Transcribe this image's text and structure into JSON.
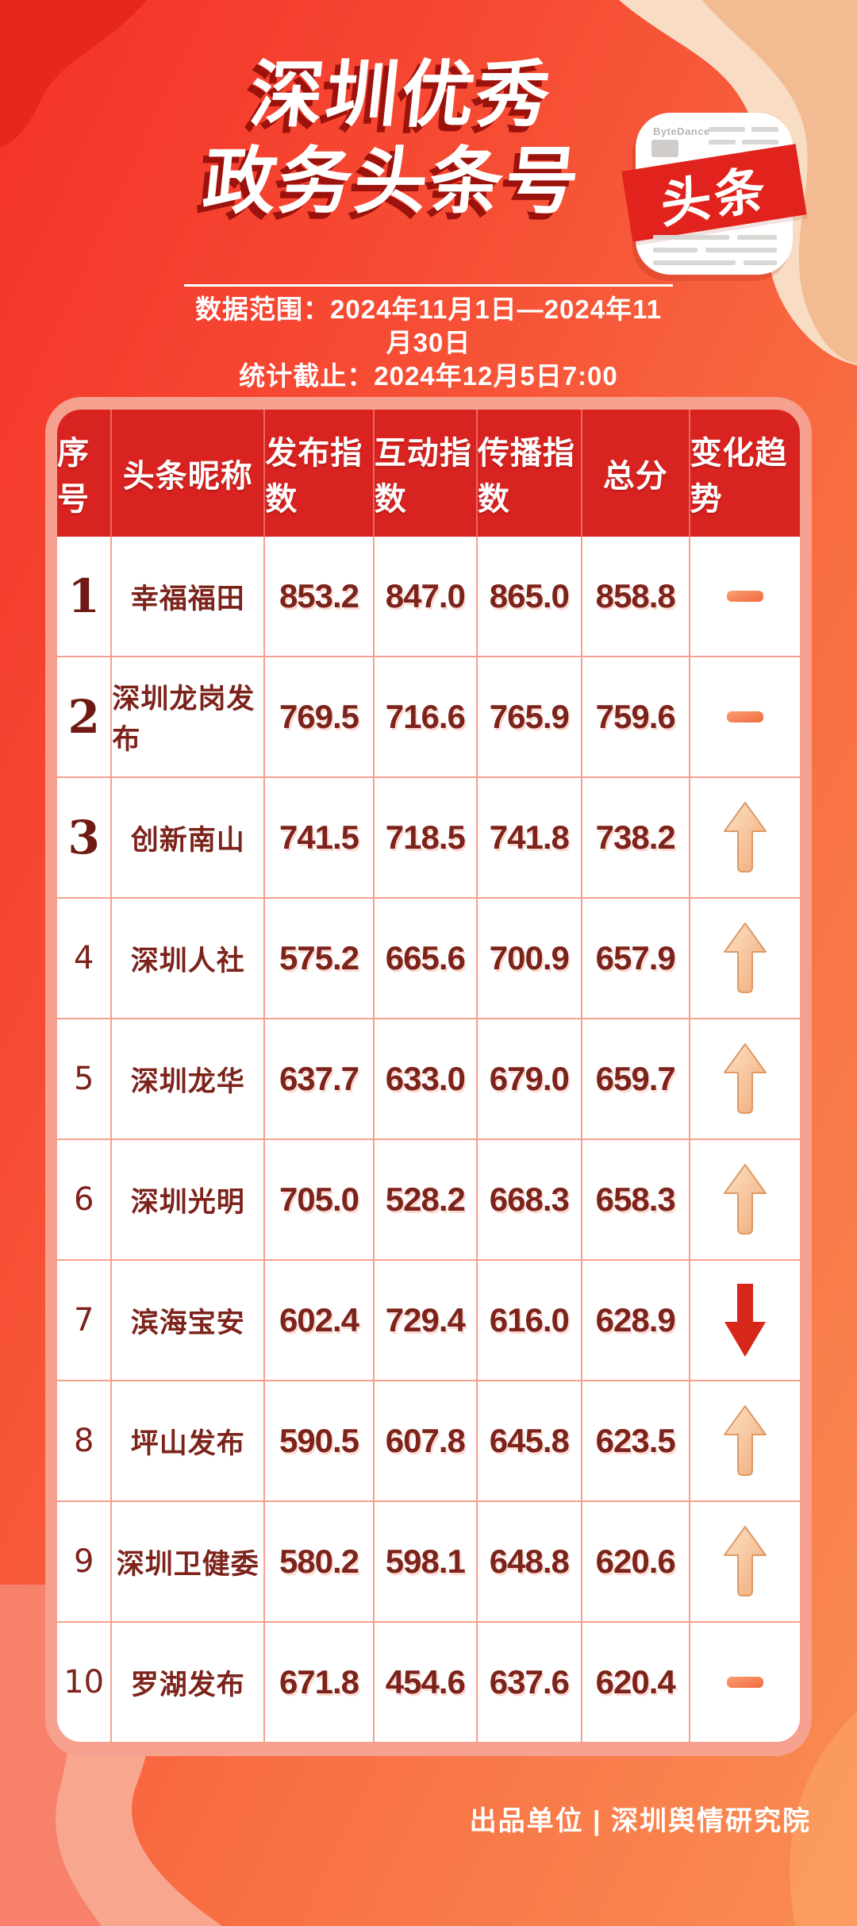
{
  "title": {
    "line1": "深圳优秀",
    "line2": "政务头条号"
  },
  "app_icon": {
    "banner_text": "头条",
    "brand_text": "ByteDance"
  },
  "meta": {
    "date_range": "数据范围：2024年11月1日—2024年11月30日",
    "stats_cutoff": "统计截止：2024年12月5日7:00"
  },
  "chart_data": {
    "type": "table",
    "title": "深圳优秀政务头条号",
    "columns": [
      "序号",
      "头条昵称",
      "发布指数",
      "互动指数",
      "传播指数",
      "总分",
      "变化趋势"
    ],
    "rows": [
      {
        "rank": "1",
        "name": "幸福福田",
        "publish_index": "853.2",
        "interaction_index": "847.0",
        "spread_index": "865.0",
        "total_score": "858.8",
        "trend": "flat"
      },
      {
        "rank": "2",
        "name": "深圳龙岗发布",
        "publish_index": "769.5",
        "interaction_index": "716.6",
        "spread_index": "765.9",
        "total_score": "759.6",
        "trend": "flat"
      },
      {
        "rank": "3",
        "name": "创新南山",
        "publish_index": "741.5",
        "interaction_index": "718.5",
        "spread_index": "741.8",
        "total_score": "738.2",
        "trend": "up"
      },
      {
        "rank": "4",
        "name": "深圳人社",
        "publish_index": "575.2",
        "interaction_index": "665.6",
        "spread_index": "700.9",
        "total_score": "657.9",
        "trend": "up"
      },
      {
        "rank": "5",
        "name": "深圳龙华",
        "publish_index": "637.7",
        "interaction_index": "633.0",
        "spread_index": "679.0",
        "total_score": "659.7",
        "trend": "up"
      },
      {
        "rank": "6",
        "name": "深圳光明",
        "publish_index": "705.0",
        "interaction_index": "528.2",
        "spread_index": "668.3",
        "total_score": "658.3",
        "trend": "up"
      },
      {
        "rank": "7",
        "name": "滨海宝安",
        "publish_index": "602.4",
        "interaction_index": "729.4",
        "spread_index": "616.0",
        "total_score": "628.9",
        "trend": "down"
      },
      {
        "rank": "8",
        "name": "坪山发布",
        "publish_index": "590.5",
        "interaction_index": "607.8",
        "spread_index": "645.8",
        "total_score": "623.5",
        "trend": "up"
      },
      {
        "rank": "9",
        "name": "深圳卫健委",
        "publish_index": "580.2",
        "interaction_index": "598.1",
        "spread_index": "648.8",
        "total_score": "620.6",
        "trend": "up"
      },
      {
        "rank": "10",
        "name": "罗湖发布",
        "publish_index": "671.8",
        "interaction_index": "454.6",
        "spread_index": "637.6",
        "total_score": "620.4",
        "trend": "flat"
      }
    ]
  },
  "footer": {
    "credit": "出品单位 | 深圳舆情研究院"
  },
  "colors": {
    "header_red": "#d92320",
    "card_pink": "#f6a190",
    "grid_line": "#f5a08f",
    "text_maroon": "#7c231b",
    "trend_up_light": "#fbe3c6",
    "trend_up_dark": "#f2a877",
    "trend_up_stroke": "#dd9a67",
    "trend_down": "#d7271b",
    "trend_flat_light": "#f9a173",
    "trend_flat_dark": "#f4683f"
  }
}
